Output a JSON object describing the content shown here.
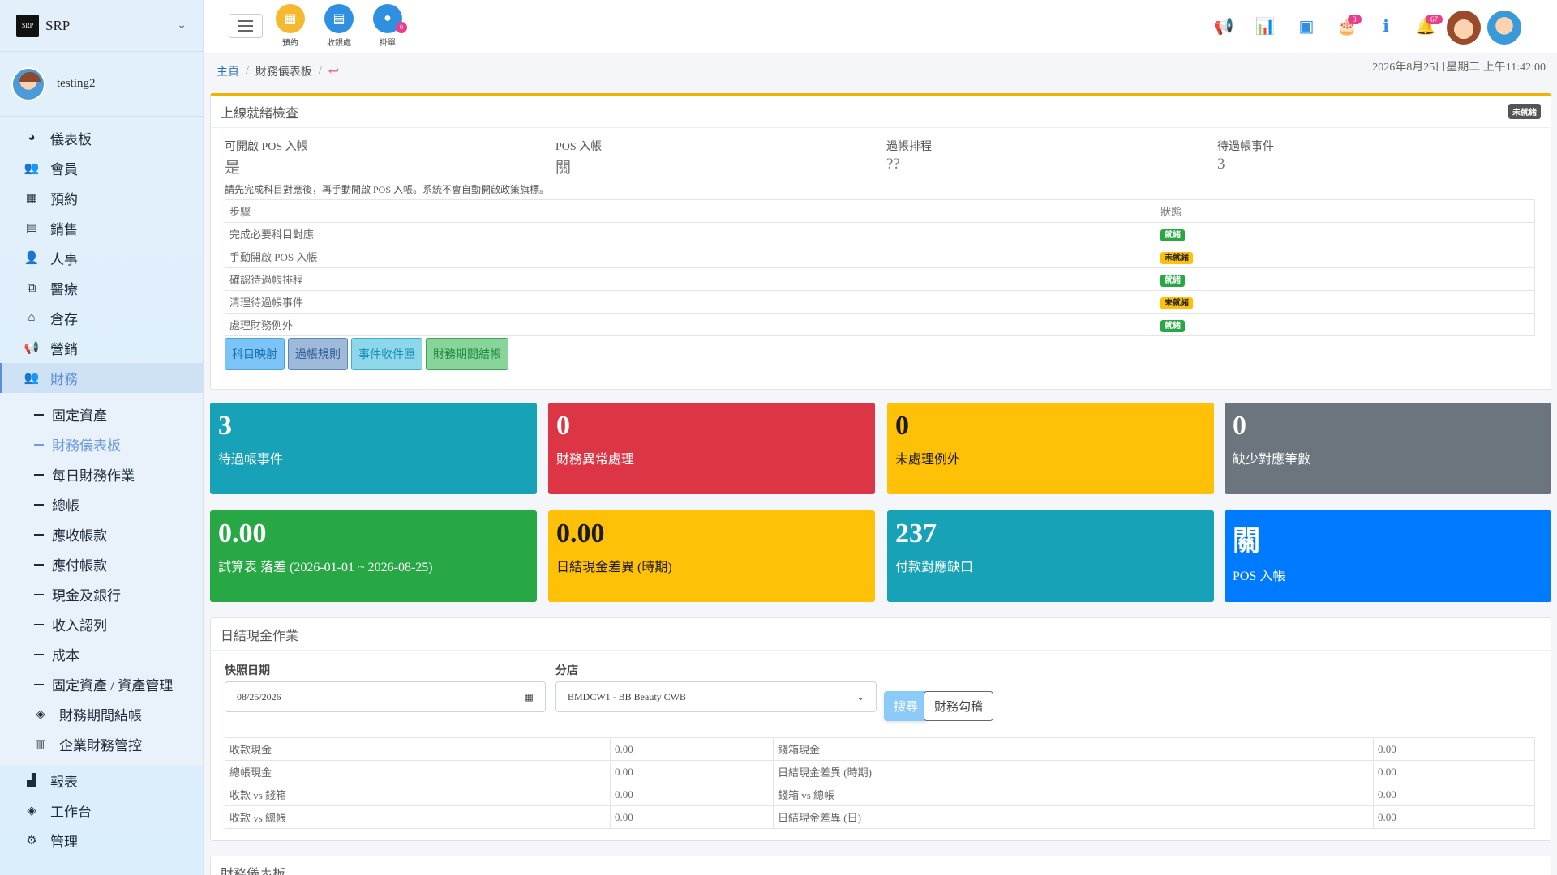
{
  "brand": {
    "name": "SRP",
    "logo_text": "SRP"
  },
  "user": {
    "name": "testing2"
  },
  "sidebar": {
    "items": [
      {
        "label": "儀表板",
        "icon": "pie-chart-icon"
      },
      {
        "label": "會員",
        "icon": "users-icon"
      },
      {
        "label": "預約",
        "icon": "calendar-icon"
      },
      {
        "label": "銷售",
        "icon": "card-icon"
      },
      {
        "label": "人事",
        "icon": "person-icon"
      },
      {
        "label": "醫療",
        "icon": "medical-icon"
      },
      {
        "label": "倉存",
        "icon": "warehouse-icon"
      },
      {
        "label": "營銷",
        "icon": "megaphone-icon"
      },
      {
        "label": "財務",
        "icon": "users-icon"
      }
    ],
    "finance_sub": [
      "固定資產",
      "財務儀表板",
      "每日財務作業",
      "總帳",
      "應收帳款",
      "應付帳款",
      "現金及銀行",
      "收入認列",
      "成本",
      "固定資產 / 資產管理"
    ],
    "finance_sub_icons": [
      {
        "label": "財務期間結帳",
        "icon": "layers-icon"
      },
      {
        "label": "企業財務管控",
        "icon": "building-icon"
      }
    ],
    "bottom": [
      {
        "label": "報表",
        "icon": "bar-chart-icon"
      },
      {
        "label": "工作台",
        "icon": "layers-icon"
      },
      {
        "label": "管理",
        "icon": "gear-icon"
      }
    ]
  },
  "topbar": {
    "quick": [
      {
        "label": "預約",
        "color": "#f5b82e"
      },
      {
        "label": "收銀處",
        "color": "#2f8fe0"
      },
      {
        "label": "掛單",
        "color": "#2f8fe0",
        "badge": "0"
      }
    ],
    "badge_cake": "3",
    "badge_bell": "67"
  },
  "breadcrumb": {
    "home": "主頁",
    "current": "財務儀表板"
  },
  "datetime": "2026年8月25日星期二 上午11:42:00",
  "readiness": {
    "title": "上線就緒檢查",
    "status": "未就緒",
    "kv": [
      {
        "label": "可開啟 POS 入帳",
        "value": "是"
      },
      {
        "label": "POS 入帳",
        "value": "關"
      },
      {
        "label": "過帳排程",
        "value": "??"
      },
      {
        "label": "待過帳事件",
        "value": "3"
      }
    ],
    "note": "請先完成科目對應後，再手動開啟 POS 入帳。系統不會自動開啟政策旗標。",
    "table_headers": [
      "步驟",
      "狀態"
    ],
    "steps": [
      {
        "step": "完成必要科目對應",
        "status": "就緒",
        "ok": true
      },
      {
        "step": "手動開啟 POS 入帳",
        "status": "未就緒",
        "ok": false
      },
      {
        "step": "確認待過帳排程",
        "status": "就緒",
        "ok": true
      },
      {
        "step": "清理待過帳事件",
        "status": "未就緒",
        "ok": false
      },
      {
        "step": "處理財務例外",
        "status": "就緒",
        "ok": true
      }
    ],
    "buttons": [
      "科目映射",
      "過帳規則",
      "事件收件匣",
      "財務期間結帳"
    ]
  },
  "stats": [
    {
      "value": "3",
      "label": "待過帳事件",
      "color": "#17a2b8"
    },
    {
      "value": "0",
      "label": "財務異常處理",
      "color": "#dc3545"
    },
    {
      "value": "0",
      "label": "未處理例外",
      "color": "#ffc107"
    },
    {
      "value": "0",
      "label": "缺少對應筆數",
      "color": "#6c757d"
    },
    {
      "value": "0.00",
      "label": "試算表 落差 (2026-01-01 ~ 2026-08-25)",
      "color": "#28a745"
    },
    {
      "value": "0.00",
      "label": "日結現金差異 (時期)",
      "color": "#ffc107"
    },
    {
      "value": "237",
      "label": "付款對應缺口",
      "color": "#17a2b8"
    },
    {
      "value": "關",
      "label": "POS 入帳",
      "color": "#007bff"
    }
  ],
  "cash": {
    "title": "日結現金作業",
    "date_label": "快照日期",
    "date_value": "08/25/2026",
    "branch_label": "分店",
    "branch_value": "BMDCW1 - BB Beauty CWB",
    "search_label": "搜尋",
    "audit_label": "財務勾稽",
    "rows": [
      [
        "收款現金",
        "0.00",
        "錢箱現金",
        "0.00"
      ],
      [
        "總帳現金",
        "0.00",
        "日結現金差異 (時期)",
        "0.00"
      ],
      [
        "收款 vs 錢箱",
        "0.00",
        "錢箱 vs 總帳",
        "0.00"
      ],
      [
        "收款 vs 總帳",
        "0.00",
        "日結現金差異 (日)",
        "0.00"
      ]
    ]
  },
  "finance_dash": {
    "title": "財務儀表板"
  }
}
